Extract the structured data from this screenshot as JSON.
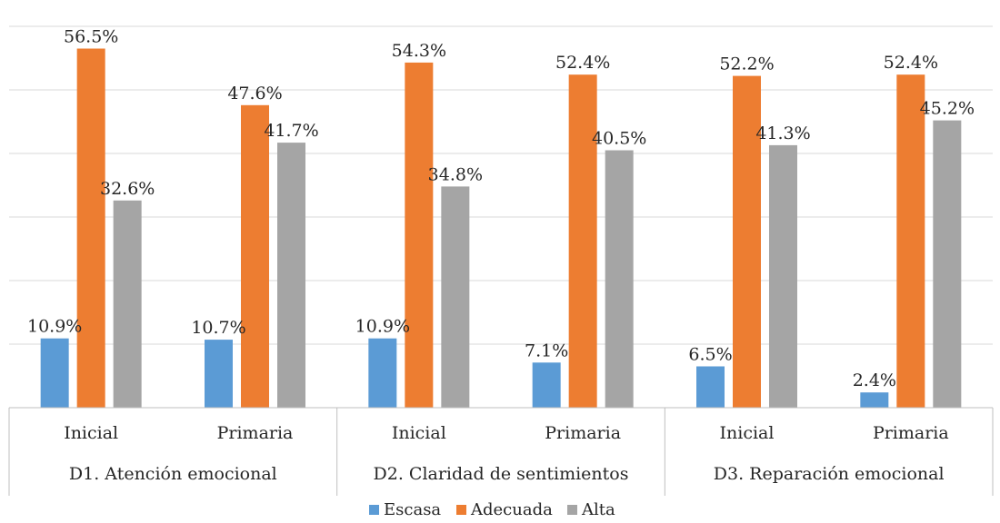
{
  "chart_data": {
    "type": "bar",
    "groups": [
      {
        "label": "D1. Atención emocional",
        "categories": [
          "Inicial",
          "Primaria"
        ]
      },
      {
        "label": "D2. Claridad de sentimientos",
        "categories": [
          "Inicial",
          "Primaria"
        ]
      },
      {
        "label": "D3. Reparación emocional",
        "categories": [
          "Inicial",
          "Primaria"
        ]
      }
    ],
    "series": [
      {
        "name": "Escasa",
        "color": "#5b9bd5",
        "values": [
          10.9,
          10.7,
          10.9,
          7.1,
          6.5,
          2.4
        ],
        "labels": [
          "10.9%",
          "10.7%",
          "10.9%",
          "7.1%",
          "6.5%",
          "2.4%"
        ]
      },
      {
        "name": "Adecuada",
        "color": "#ed7d31",
        "values": [
          56.5,
          47.6,
          54.3,
          52.4,
          52.2,
          52.4
        ],
        "labels": [
          "56.5%",
          "47.6%",
          "54.3%",
          "52.4%",
          "52.2%",
          "52.4%"
        ]
      },
      {
        "name": "Alta",
        "color": "#a5a5a5",
        "values": [
          32.6,
          41.7,
          34.8,
          40.5,
          41.3,
          45.2
        ],
        "labels": [
          "32.6%",
          "41.7%",
          "34.8%",
          "40.5%",
          "41.3%",
          "45.2%"
        ]
      }
    ],
    "ylim": [
      0,
      60
    ],
    "grid": true,
    "legend_position": "bottom"
  }
}
